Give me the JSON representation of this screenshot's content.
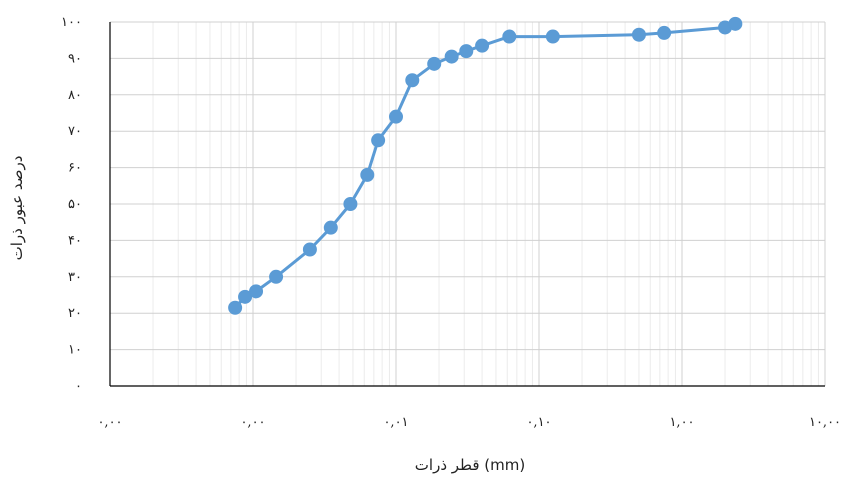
{
  "chart_data": {
    "type": "scatter",
    "title": "",
    "xlabel": "قطر ذرات (mm)",
    "ylabel": "درصد عبور ذرات",
    "x_scale": "log",
    "xlim": [
      0.0001,
      10
    ],
    "ylim": [
      0,
      100
    ],
    "grid": true,
    "legend": "none",
    "line_color": "#5b9bd5",
    "marker_color": "#5b9bd5",
    "x_tick_values": [
      0.0001,
      0.001,
      0.01,
      0.1,
      1,
      10
    ],
    "x_tick_labels": [
      "۰,۰۰",
      "۰,۰۰",
      "۰,۰۱",
      "۰,۱۰",
      "۱,۰۰",
      "۱۰,۰۰"
    ],
    "y_tick_values": [
      0,
      10,
      20,
      30,
      40,
      50,
      60,
      70,
      80,
      90,
      100
    ],
    "y_tick_labels": [
      "۰",
      "۱۰",
      "۲۰",
      "۳۰",
      "۴۰",
      "۵۰",
      "۶۰",
      "۷۰",
      "۸۰",
      "۹۰",
      "۱۰۰"
    ],
    "series": [
      {
        "x": [
          0.00075,
          0.00088,
          0.00105,
          0.00145,
          0.0025,
          0.0035,
          0.0048,
          0.0063,
          0.0075,
          0.01,
          0.013,
          0.0185,
          0.0245,
          0.031,
          0.04,
          0.062,
          0.125,
          0.5,
          0.75,
          2.0,
          2.36
        ],
        "y": [
          21.5,
          24.5,
          26,
          30,
          37.5,
          43.5,
          50,
          58,
          67.5,
          74,
          84,
          88.5,
          90.5,
          92,
          93.5,
          96,
          96,
          96.5,
          97,
          98.5,
          99.5
        ]
      }
    ]
  }
}
